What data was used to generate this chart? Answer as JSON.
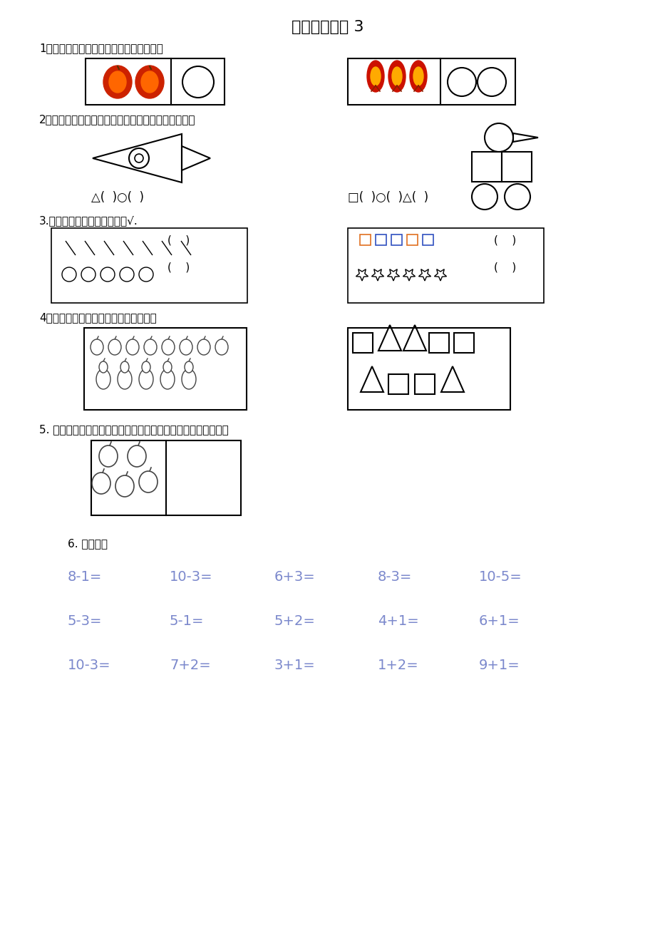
{
  "title": "幼小衔接数学 3",
  "title_fontsize": 16,
  "bg_color": "#ffffff",
  "text_color": "#000000",
  "math_color": "#7b88cc",
  "section1_label": "1、用添上或去掉的办法使两边变的一样多",
  "section2_label": "2、下面是哪些图形拼成的，各有几个？填在（）内。",
  "section3_label": "3.哪种图形多，在多的一行打√.",
  "section4_label": "4．哪种少，在少的那种图形上涂颜色。",
  "section5_label": "5. 你会画什么，就在右边空框里画什么，要画得与左边同样多？",
  "section6_label": "6. 算一算。",
  "math_row1": [
    "8-1=",
    "10-3=",
    "6+3=",
    "8-3=",
    "10-5="
  ],
  "math_row2": [
    "5-3=",
    "5-1=",
    "5+2=",
    "4+1=",
    "6+1="
  ],
  "math_row3": [
    "10-3=",
    "7+2=",
    "3+1=",
    "1+2=",
    "9+1="
  ]
}
